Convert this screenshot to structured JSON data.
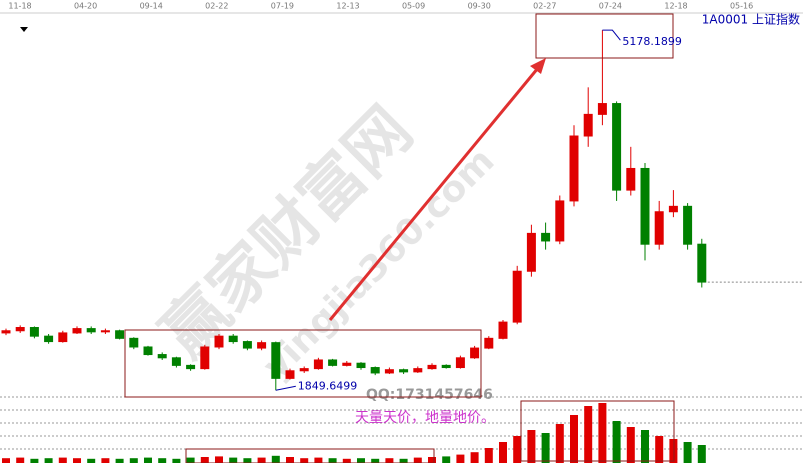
{
  "chart_data": {
    "type": "candlestick",
    "title": "1A0001  上证指数",
    "date_labels": [
      "11-18",
      "04-20",
      "09-14",
      "02-22",
      "07-19",
      "12-13",
      "05-09",
      "09-30",
      "02-27",
      "07-24",
      "12-18",
      "05-16"
    ],
    "open": [
      2380,
      2400,
      2430,
      2350,
      2300,
      2380,
      2420,
      2390,
      2400,
      2330,
      2250,
      2180,
      2150,
      2080,
      2050,
      2250,
      2350,
      2300,
      2240,
      2290,
      1960,
      2030,
      2050,
      2130,
      2080,
      2100,
      2060,
      2010,
      2040,
      2020,
      2050,
      2080,
      2060,
      2150,
      2240,
      2330,
      2480,
      2950,
      3300,
      3230,
      3600,
      4200,
      4400,
      4500,
      3700,
      3900,
      3200,
      3500,
      3550,
      3200
    ],
    "high": [
      2420,
      2450,
      2440,
      2370,
      2400,
      2440,
      2440,
      2420,
      2410,
      2340,
      2260,
      2200,
      2160,
      2090,
      2270,
      2370,
      2370,
      2310,
      2310,
      2300,
      2050,
      2070,
      2150,
      2140,
      2120,
      2110,
      2070,
      2060,
      2050,
      2070,
      2100,
      2090,
      2170,
      2260,
      2350,
      2500,
      3000,
      3380,
      3400,
      3650,
      4300,
      4650,
      5178.1899,
      4520,
      4100,
      3950,
      3600,
      3700,
      3580,
      3250
    ],
    "low": [
      2360,
      2380,
      2330,
      2280,
      2290,
      2370,
      2370,
      2370,
      2320,
      2230,
      2170,
      2130,
      2060,
      2030,
      2040,
      2230,
      2280,
      2220,
      2220,
      1849.6499,
      1950,
      2010,
      2040,
      2070,
      2070,
      2040,
      1990,
      2000,
      2000,
      2010,
      2040,
      2050,
      2050,
      2140,
      2230,
      2320,
      2460,
      2900,
      3150,
      3200,
      3550,
      4100,
      4300,
      3600,
      3650,
      3050,
      3150,
      3450,
      3150,
      2800
    ],
    "close": [
      2400,
      2430,
      2350,
      2300,
      2380,
      2420,
      2390,
      2400,
      2330,
      2250,
      2180,
      2150,
      2080,
      2050,
      2250,
      2350,
      2300,
      2240,
      2290,
      1960,
      2030,
      2050,
      2130,
      2080,
      2100,
      2060,
      2010,
      2040,
      2020,
      2050,
      2080,
      2060,
      2150,
      2240,
      2330,
      2480,
      2950,
      3300,
      3230,
      3600,
      4200,
      4400,
      4500,
      3700,
      3900,
      3200,
      3500,
      3550,
      3200,
      2850
    ],
    "volume": [
      8,
      9,
      7,
      8,
      9,
      8,
      7,
      8,
      7,
      8,
      9,
      8,
      7,
      9,
      10,
      11,
      9,
      8,
      9,
      12,
      10,
      8,
      9,
      8,
      7,
      8,
      7,
      8,
      7,
      9,
      10,
      11,
      14,
      18,
      25,
      35,
      45,
      55,
      50,
      65,
      80,
      95,
      100,
      70,
      60,
      55,
      45,
      40,
      35,
      30
    ],
    "ylim": [
      1760,
      5300
    ],
    "vlim": [
      0,
      110
    ],
    "up_color": "#e00000",
    "down_color": "#008000",
    "annotation": "天量天价，地量地价。",
    "watermark": {
      "brand": "赢家财富网",
      "site": "yingjia360.com",
      "qq": "QQ:1731457646"
    }
  }
}
